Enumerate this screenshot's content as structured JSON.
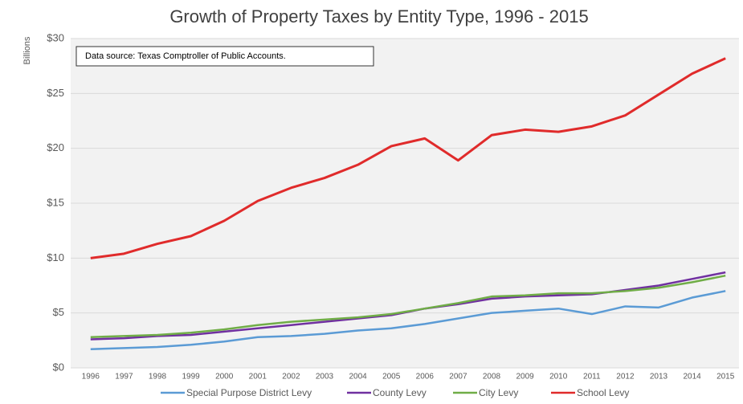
{
  "chart_data": {
    "type": "line",
    "title": "Growth of Property Taxes by Entity Type, 1996 - 2015",
    "y_label": "Billions",
    "annotation": "Data source: Texas Comptroller of Public Accounts.",
    "categories": [
      "1996",
      "1997",
      "1998",
      "1999",
      "2000",
      "2001",
      "2002",
      "2003",
      "2004",
      "2005",
      "2006",
      "2007",
      "2008",
      "2009",
      "2010",
      "2011",
      "2012",
      "2013",
      "2014",
      "2015"
    ],
    "series": [
      {
        "name": "Special Purpose District Levy",
        "color": "#5b9bd5",
        "values": [
          1.7,
          1.8,
          1.9,
          2.1,
          2.4,
          2.8,
          2.9,
          3.1,
          3.4,
          3.6,
          4.0,
          4.5,
          5.0,
          5.2,
          5.4,
          4.9,
          5.6,
          5.5,
          6.4,
          7.0
        ]
      },
      {
        "name": "County Levy",
        "color": "#7030a0",
        "values": [
          2.6,
          2.7,
          2.9,
          3.0,
          3.3,
          3.6,
          3.9,
          4.2,
          4.5,
          4.8,
          5.4,
          5.8,
          6.3,
          6.5,
          6.6,
          6.7,
          7.1,
          7.5,
          8.1,
          8.7
        ]
      },
      {
        "name": "City Levy",
        "color": "#70ad47",
        "values": [
          2.8,
          2.9,
          3.0,
          3.2,
          3.5,
          3.9,
          4.2,
          4.4,
          4.6,
          4.9,
          5.4,
          5.9,
          6.5,
          6.6,
          6.8,
          6.8,
          7.0,
          7.3,
          7.8,
          8.4
        ]
      },
      {
        "name": "School Levy",
        "color": "#e02b2b",
        "values": [
          10.0,
          10.4,
          11.3,
          12.0,
          13.4,
          15.2,
          16.4,
          17.3,
          18.5,
          20.2,
          20.9,
          18.9,
          21.2,
          21.7,
          21.5,
          22.0,
          23.0,
          24.9,
          26.8,
          28.2
        ]
      }
    ],
    "ylim": [
      0,
      30
    ],
    "yticks": [
      {
        "value": 0,
        "label": "$0"
      },
      {
        "value": 5,
        "label": "$5"
      },
      {
        "value": 10,
        "label": "$10"
      },
      {
        "value": 15,
        "label": "$15"
      },
      {
        "value": 20,
        "label": "$20"
      },
      {
        "value": 25,
        "label": "$25"
      },
      {
        "value": 30,
        "label": "$30"
      }
    ],
    "grid": true,
    "legend": "bottom"
  }
}
